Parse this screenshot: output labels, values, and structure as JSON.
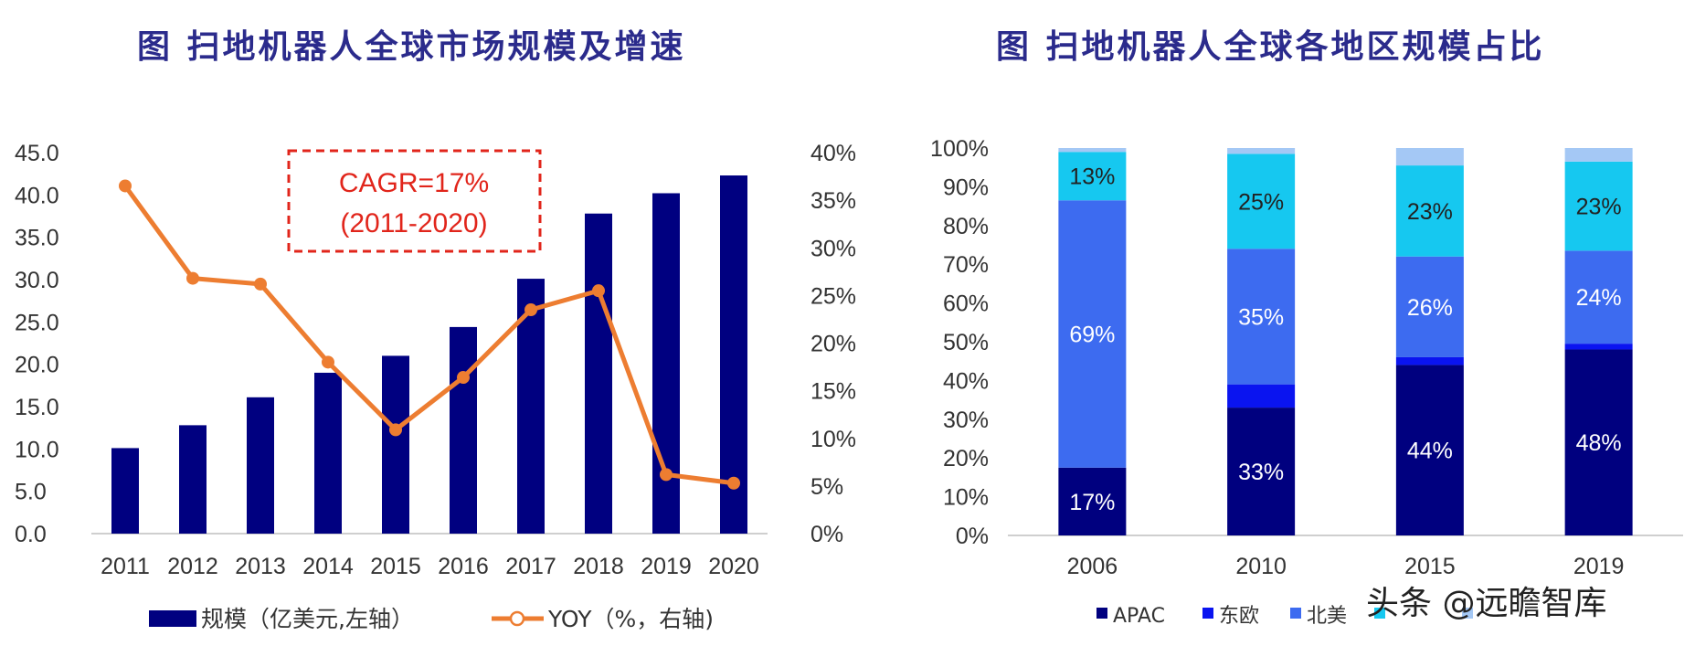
{
  "titles": {
    "left": "图  扫地机器人全球市场规模及增速",
    "right": "图  扫地机器人全球各地区规模占比"
  },
  "annotation": {
    "line1": "CAGR=17%",
    "line2": "(2011-2020)"
  },
  "watermark": "头条 @远瞻智库",
  "colors": {
    "bar": "#000080",
    "line": "#ed7d31",
    "annotation": "#e1251b",
    "apac": "#00007f",
    "east_europe": "#0a14f0",
    "north_america": "#3d6bf0",
    "other": "#16c8f0",
    "rest": "#a4c8f5"
  },
  "chart_data": [
    {
      "type": "bar",
      "categories": [
        "2011",
        "2012",
        "2013",
        "2014",
        "2015",
        "2016",
        "2017",
        "2018",
        "2019",
        "2020"
      ],
      "series": [
        {
          "name": "规模（亿美元,左轴）",
          "axis": "left",
          "type": "bar",
          "values": [
            10.1,
            12.8,
            16.1,
            19.0,
            21.0,
            24.4,
            30.1,
            37.8,
            40.2,
            42.3
          ]
        },
        {
          "name": "YOY（%，右轴)",
          "axis": "right",
          "type": "line",
          "values": [
            36.5,
            26.8,
            26.2,
            18.0,
            10.9,
            16.4,
            23.5,
            25.5,
            6.2,
            5.3
          ]
        }
      ],
      "yleft": {
        "min": 0,
        "max": 45,
        "ticks": [
          "0.0",
          "5.0",
          "10.0",
          "15.0",
          "20.0",
          "25.0",
          "30.0",
          "35.0",
          "40.0",
          "45.0"
        ]
      },
      "yright": {
        "min": 0,
        "max": 40,
        "ticks": [
          "0%",
          "5%",
          "10%",
          "15%",
          "20%",
          "25%",
          "30%",
          "35%",
          "40%"
        ]
      },
      "grid": false,
      "legend": "bottom"
    },
    {
      "type": "bar",
      "stacked": true,
      "categories": [
        "2006",
        "2010",
        "2015",
        "2019"
      ],
      "series": [
        {
          "name": "APAC",
          "values": [
            17.5,
            33.0,
            44.0,
            48.0
          ],
          "labels": [
            "17%",
            "33%",
            "44%",
            "48%"
          ]
        },
        {
          "name": "东欧",
          "values": [
            0.0,
            6.0,
            2.0,
            1.5
          ],
          "labels": [
            "",
            "",
            "",
            ""
          ]
        },
        {
          "name": "北美",
          "values": [
            69.0,
            35.0,
            26.0,
            24.0
          ],
          "labels": [
            "69%",
            "35%",
            "26%",
            "24%"
          ]
        },
        {
          "name": "",
          "values": [
            12.5,
            24.5,
            23.5,
            23.0
          ],
          "labels": [
            "13%",
            "25%",
            "23%",
            "23%"
          ]
        },
        {
          "name": "",
          "values": [
            1.0,
            1.5,
            4.5,
            3.5
          ],
          "labels": [
            "",
            "",
            "",
            ""
          ]
        }
      ],
      "y": {
        "min": 0,
        "max": 100,
        "ticks": [
          "0%",
          "10%",
          "20%",
          "30%",
          "40%",
          "50%",
          "60%",
          "70%",
          "80%",
          "90%",
          "100%"
        ]
      },
      "grid": false,
      "legend": "bottom"
    }
  ]
}
